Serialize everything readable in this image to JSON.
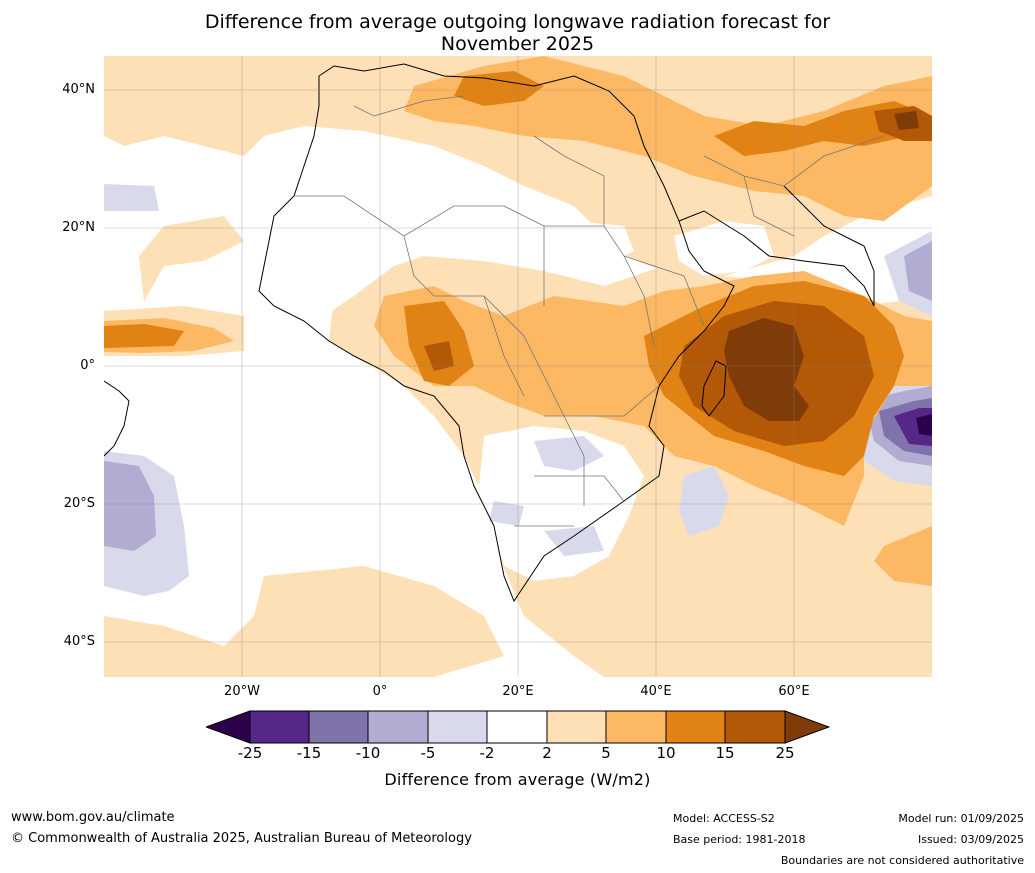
{
  "title": {
    "line1": "Difference from average outgoing longwave radiation forecast for",
    "line2": "November 2025"
  },
  "axes": {
    "lat_labels": [
      "40°N",
      "20°N",
      "0°",
      "20°S",
      "40°S"
    ],
    "lon_labels": [
      "20°W",
      "0°",
      "20°E",
      "40°E",
      "60°E"
    ]
  },
  "colorbar": {
    "label": "Difference from average (W/m2)",
    "ticks": [
      "-25",
      "-15",
      "-10",
      "-5",
      "-2",
      "2",
      "5",
      "10",
      "15",
      "25"
    ],
    "colors": {
      "below_min": "#2d004b",
      "c_m25_m15": "#542788",
      "c_m15_m10": "#8073ac",
      "c_m10_m5": "#b2abd2",
      "c_m5_m2": "#d8daeb",
      "c_m2_p2": "#ffffff",
      "c_p2_p5": "#fee0b6",
      "c_p5_p10": "#fdb863",
      "c_p10_p15": "#e08214",
      "c_p15_p25": "#b35806",
      "above_max": "#7f3b08"
    }
  },
  "footer": {
    "website": "www.bom.gov.au/climate",
    "copyright": "© Commonwealth of Australia 2025, Australian Bureau of Meteorology",
    "model": "Model: ACCESS-S2",
    "base_period": "Base period: 1981-2018",
    "model_run": "Model run: 01/09/2025",
    "issued": "Issued: 03/09/2025",
    "disclaimer": "Boundaries are not considered authoritative"
  }
}
